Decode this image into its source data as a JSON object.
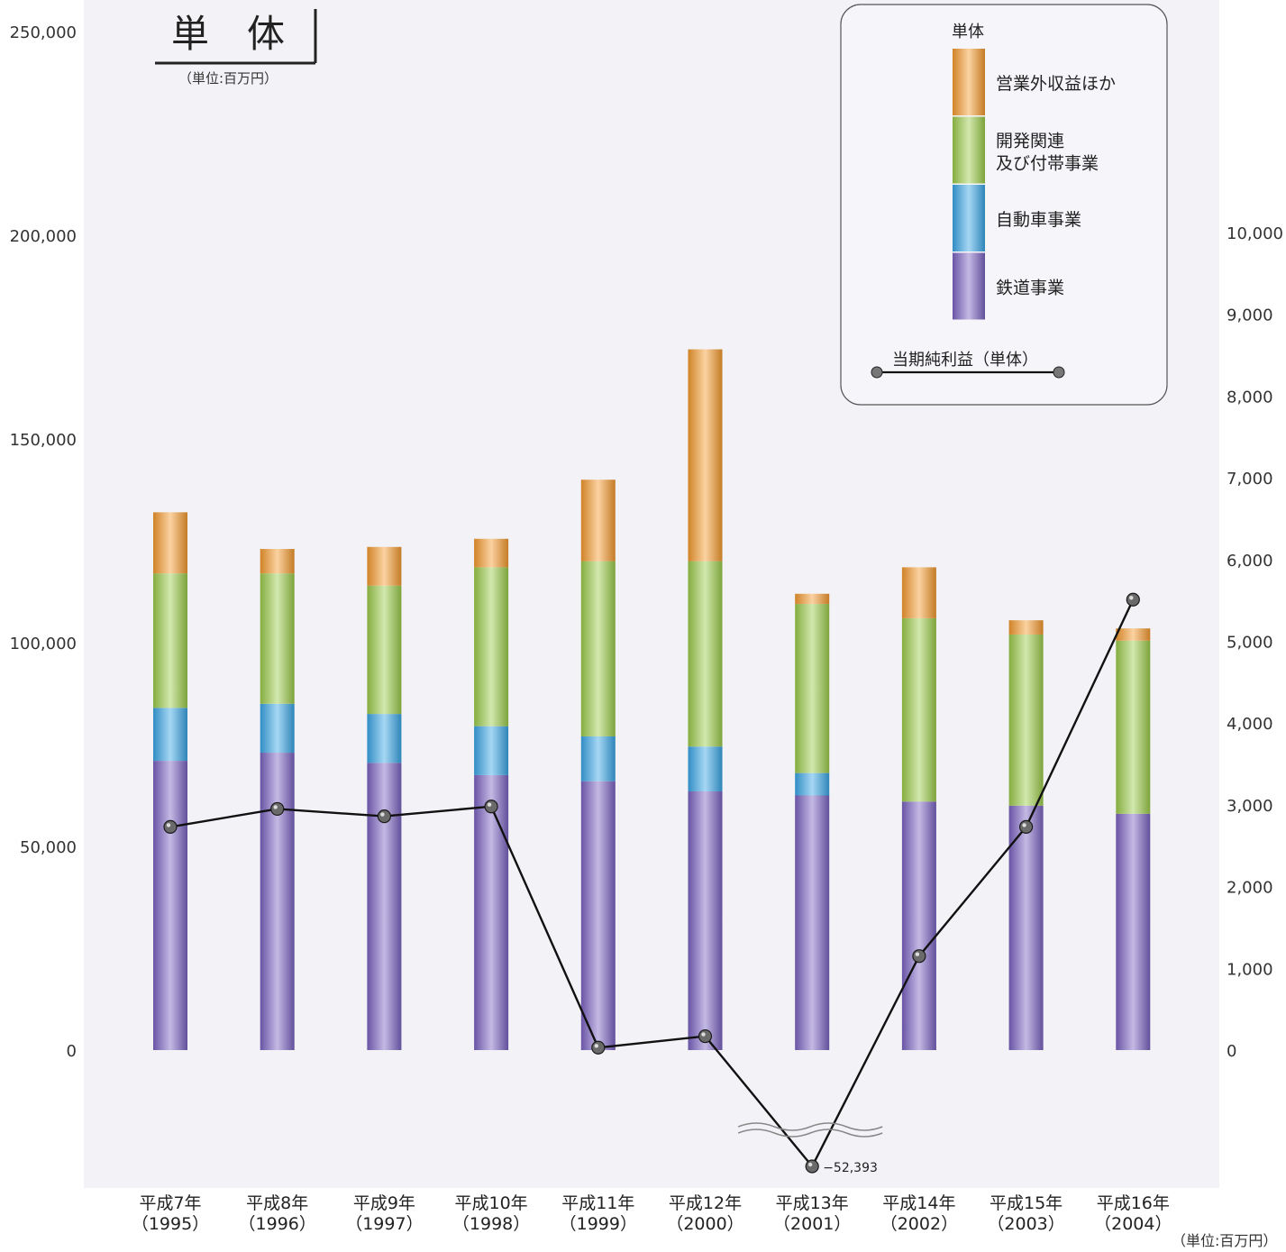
{
  "chart_data": {
    "type": "bar",
    "title": "単　体",
    "subtitle": "（単位:百万円）",
    "unit_note_right": "（単位:百万円）",
    "categories": [
      {
        "era": "平成7年",
        "year": "（1995）"
      },
      {
        "era": "平成8年",
        "year": "（1996）"
      },
      {
        "era": "平成9年",
        "year": "（1997）"
      },
      {
        "era": "平成10年",
        "year": "（1998）"
      },
      {
        "era": "平成11年",
        "year": "（1999）"
      },
      {
        "era": "平成12年",
        "year": "（2000）"
      },
      {
        "era": "平成13年",
        "year": "（2001）"
      },
      {
        "era": "平成14年",
        "year": "（2002）"
      },
      {
        "era": "平成15年",
        "year": "（2003）"
      },
      {
        "era": "平成16年",
        "year": "（2004）"
      }
    ],
    "left_axis": {
      "ylim": [
        0,
        250000
      ],
      "ticks": [
        "250,000",
        "200,000",
        "150,000",
        "100,000",
        "50,000",
        "0"
      ],
      "tick_values": [
        250000,
        200000,
        150000,
        100000,
        50000,
        0
      ]
    },
    "right_axis": {
      "ylim": [
        0,
        10000
      ],
      "ticks": [
        "10,000",
        "9,000",
        "8,000",
        "7,000",
        "6,000",
        "5,000",
        "4,000",
        "3,000",
        "2,000",
        "1,000",
        "0"
      ],
      "tick_values": [
        10000,
        9000,
        8000,
        7000,
        6000,
        5000,
        4000,
        3000,
        2000,
        1000,
        0
      ]
    },
    "legend": {
      "title": "単体",
      "placement": "top-right",
      "line_label": "当期純利益（単体）"
    },
    "series": [
      {
        "name": "鉄道事業",
        "color": "#7b63c2",
        "values": [
          71000,
          73000,
          70500,
          67500,
          66000,
          63500,
          62500,
          61000,
          60000,
          58000
        ]
      },
      {
        "name": "自動車事業",
        "color": "#3aa6e6",
        "values": [
          13000,
          12000,
          12000,
          12000,
          11000,
          11000,
          5500,
          0,
          0,
          0
        ]
      },
      {
        "name": "開発関連\n及び付帯事業",
        "color": "#9ccc4a",
        "values": [
          33000,
          32000,
          31500,
          39000,
          43000,
          45500,
          41500,
          45000,
          42000,
          42500
        ]
      },
      {
        "name": "営業外収益ほか",
        "color": "#f59a2e",
        "values": [
          15000,
          6000,
          9500,
          7000,
          20000,
          52000,
          2500,
          12500,
          3500,
          3000
        ]
      }
    ],
    "line_series": {
      "name": "当期純利益（単体）",
      "axis": "right",
      "values": [
        2730,
        2950,
        2860,
        2980,
        30,
        170,
        -52393,
        1150,
        2730,
        5510
      ],
      "annotation": "−52,393"
    },
    "grid": false
  }
}
